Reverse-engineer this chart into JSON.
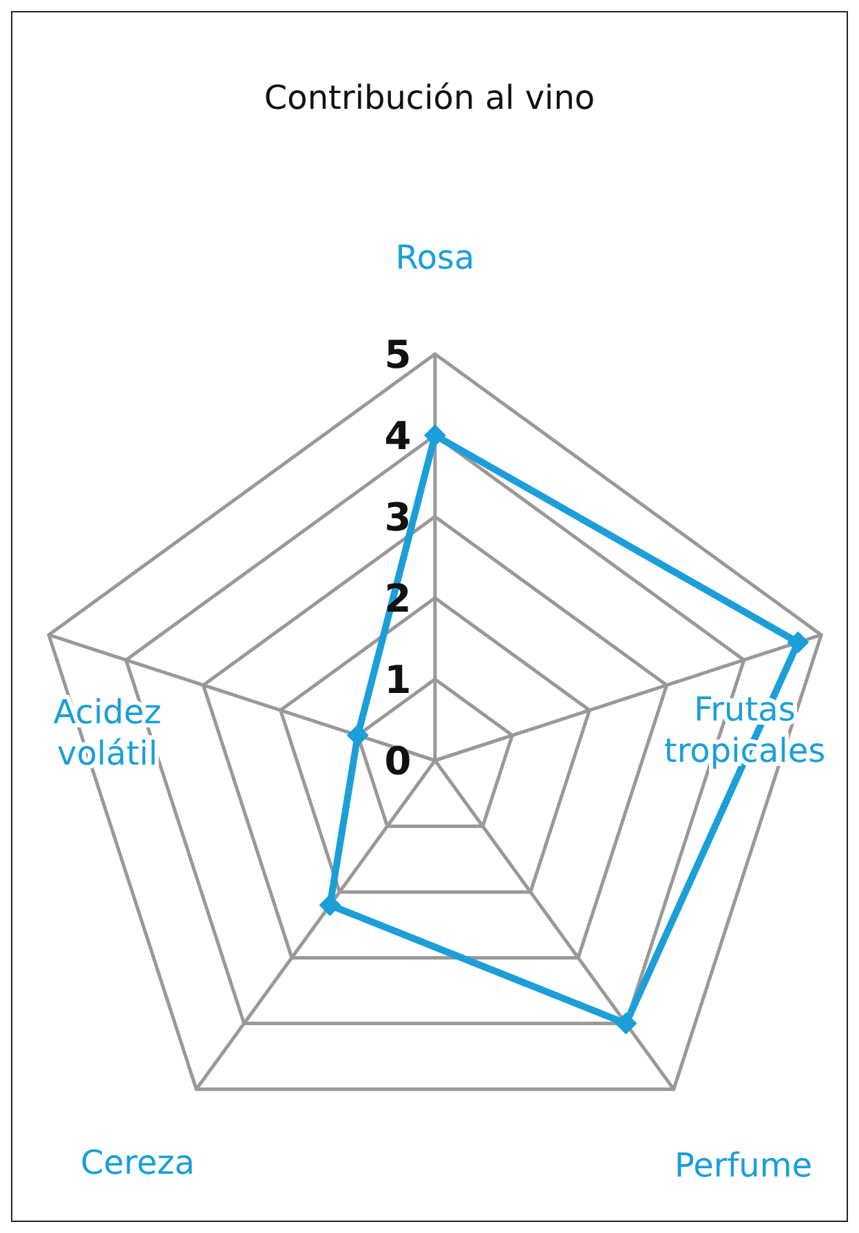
{
  "chart_data": {
    "type": "radar",
    "title": "Contribución al vino",
    "categories": [
      "Rosa",
      "Frutas tropicales",
      "Perfume",
      "Cereza",
      "Acidez volátil"
    ],
    "series": [
      {
        "color": "#1a9fdb",
        "values": [
          4.0,
          4.7,
          4.0,
          2.2,
          1.0
        ]
      }
    ],
    "ylim": [
      0,
      5
    ],
    "yticks": [
      0,
      1,
      2,
      3,
      4,
      5
    ],
    "grid": true,
    "marker": "diamond",
    "line_style": "solid",
    "legend": false
  }
}
